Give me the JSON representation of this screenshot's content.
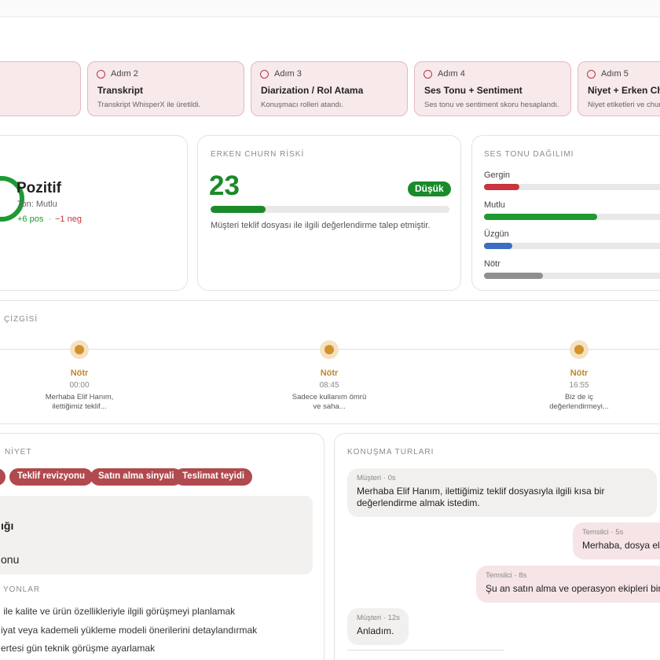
{
  "steps": [
    {
      "label": "Adım 2",
      "title": "Transkript",
      "desc": "Transkript WhisperX ile üretildi."
    },
    {
      "label": "Adım 3",
      "title": "Diarization / Rol Atama",
      "desc": "Konuşmacı rolleri atandı."
    },
    {
      "label": "Adım 4",
      "title": "Ses Tonu + Sentiment",
      "desc": "Ses tonu ve sentiment skoru hesaplandı."
    },
    {
      "label": "Adım 5",
      "title": "Niyet + Erken Churn",
      "desc": "Niyet etiketleri ve churn"
    }
  ],
  "sentiment": {
    "label": "Pozitif",
    "tone": "Ton: Mutlu",
    "pos": "+6 pos",
    "sep": "·",
    "neg": "−1 neg"
  },
  "churn": {
    "title": "ERKEN CHURN RİSKİ",
    "value": 23,
    "range": [
      0,
      100
    ],
    "badge": "Düşük",
    "note": "Müşteri teklif dosyası ile ilgili değerlendirme talep etmiştir."
  },
  "tones": {
    "title": "SES TONU DAĞILIMI",
    "range": [
      0,
      100
    ],
    "items": [
      {
        "name": "Gergin",
        "value": 15,
        "color": "#c8343f"
      },
      {
        "name": "Mutlu",
        "value": 48,
        "color": "#1e9a32"
      },
      {
        "name": "Üzgün",
        "value": 12,
        "color": "#3d6cc4"
      },
      {
        "name": "Nötr",
        "value": 25,
        "color": "#8f8f8f"
      }
    ]
  },
  "timeline": {
    "title": "ÇİZGİSİ",
    "points": [
      {
        "label": "Nötr",
        "time": "00:00",
        "text": "Merhaba Elif Hanım, ilettiğimiz teklif..."
      },
      {
        "label": "Nötr",
        "time": "08:45",
        "text": "Sadece kullanım ömrü ve saha..."
      },
      {
        "label": "Nötr",
        "time": "16:55",
        "text": "Biz de iç değerlendirmeyi..."
      }
    ]
  },
  "intent": {
    "title": "NİYET",
    "chips": [
      "Teklif revizyonu",
      "Satın alma sinyali",
      "Teslimat teyidi"
    ],
    "box": [
      "ığı",
      "onu"
    ],
    "actions_title": "YONLAR",
    "actions": [
      " ile kalite ve ürün özellikleriyle ilgili görüşmeyi planlamak",
      "iyat veya kademeli yükleme modeli önerilerini detaylandırmak",
      "ertesi gün teknik görüşme ayarlamak"
    ]
  },
  "turns": {
    "title": "KONUŞMA TURLARI",
    "messages": [
      {
        "meta": "Müşteri · 0s",
        "text": "Merhaba Elif Hanım, ilettiğimiz teklif dosyasıyla ilgili kısa bir değerlendirme almak istedim.",
        "side": "left"
      },
      {
        "meta": "Temsilci · 5s",
        "text": "Merhaba, dosya elin",
        "side": "right"
      },
      {
        "meta": "Temsilci · 8s",
        "text": "Şu an satın alma ve operasyon ekipleri birlik",
        "side": "right"
      },
      {
        "meta": "Müşteri · 12s",
        "text": "Anladım.",
        "side": "left"
      }
    ]
  }
}
